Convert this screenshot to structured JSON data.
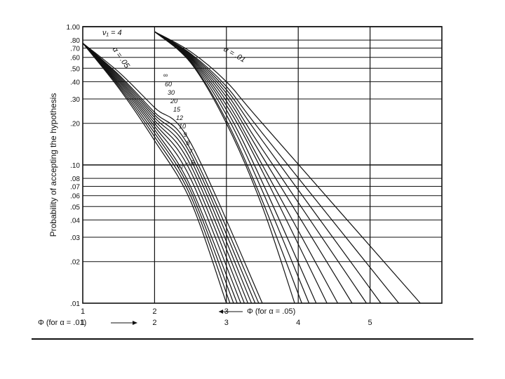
{
  "chart_data": {
    "type": "line",
    "title": "",
    "ylabel": "Probability of accepting the hypothesis",
    "yscale": "log",
    "ylim": [
      0.01,
      1.0
    ],
    "xlim": [
      1,
      6
    ],
    "grid": true,
    "y_ticks": [
      {
        "value": 1.0,
        "label": "1.00"
      },
      {
        "value": 0.8,
        "label": ".80"
      },
      {
        "value": 0.7,
        "label": ".70"
      },
      {
        "value": 0.6,
        "label": ".60"
      },
      {
        "value": 0.5,
        "label": ".50"
      },
      {
        "value": 0.4,
        "label": ".40"
      },
      {
        "value": 0.3,
        "label": ".30"
      },
      {
        "value": 0.2,
        "label": ".20"
      },
      {
        "value": 0.1,
        "label": ".10"
      },
      {
        "value": 0.08,
        "label": ".08"
      },
      {
        "value": 0.07,
        "label": ".07"
      },
      {
        "value": 0.06,
        "label": ".06"
      },
      {
        "value": 0.05,
        "label": ".05"
      },
      {
        "value": 0.04,
        "label": ".04"
      },
      {
        "value": 0.03,
        "label": ".03"
      },
      {
        "value": 0.02,
        "label": ".02"
      },
      {
        "value": 0.01,
        "label": ".01"
      }
    ],
    "x_ticks_alpha05": [
      {
        "value": 1,
        "label": "1"
      },
      {
        "value": 2,
        "label": "2"
      },
      {
        "value": 3,
        "label": "3"
      }
    ],
    "x_ticks_alpha01": [
      {
        "value": 1,
        "label": "1"
      },
      {
        "value": 2,
        "label": "2"
      },
      {
        "value": 3,
        "label": "3"
      },
      {
        "value": 4,
        "label": "4"
      },
      {
        "value": 5,
        "label": "5"
      }
    ],
    "xlabel_alpha05": "Φ (for α = .05)",
    "xlabel_alpha01": "Φ (for α = .01)",
    "annotations": {
      "nu1": "ν₁ = 4",
      "alpha05": "α = .05",
      "alpha01": "α = .01",
      "nu2_last": "ν₂ = 6"
    },
    "nu2_labels": [
      "∞",
      "60",
      "30",
      "20",
      "15",
      "12",
      "10",
      "9",
      "8",
      "7"
    ],
    "series_groups": [
      {
        "group": "α = .05",
        "x_offset": 0,
        "curves": [
          {
            "nu2": "∞",
            "points": [
              [
                1,
                0.76
              ],
              [
                1.5,
                0.36
              ],
              [
                2.0,
                0.15
              ],
              [
                2.5,
                0.055
              ],
              [
                3.0,
                0.01
              ]
            ]
          },
          {
            "nu2": "60",
            "points": [
              [
                1,
                0.76
              ],
              [
                1.5,
                0.37
              ],
              [
                2.0,
                0.16
              ],
              [
                2.5,
                0.06
              ],
              [
                3.05,
                0.01
              ]
            ]
          },
          {
            "nu2": "30",
            "points": [
              [
                1,
                0.76
              ],
              [
                1.5,
                0.38
              ],
              [
                2.0,
                0.17
              ],
              [
                2.5,
                0.065
              ],
              [
                3.1,
                0.01
              ]
            ]
          },
          {
            "nu2": "20",
            "points": [
              [
                1,
                0.76
              ],
              [
                1.5,
                0.39
              ],
              [
                2.0,
                0.18
              ],
              [
                2.5,
                0.07
              ],
              [
                3.15,
                0.01
              ]
            ]
          },
          {
            "nu2": "15",
            "points": [
              [
                1,
                0.76
              ],
              [
                1.5,
                0.4
              ],
              [
                2.0,
                0.19
              ],
              [
                2.5,
                0.08
              ],
              [
                3.2,
                0.01
              ]
            ]
          },
          {
            "nu2": "12",
            "points": [
              [
                1,
                0.76
              ],
              [
                1.5,
                0.41
              ],
              [
                2.0,
                0.2
              ],
              [
                2.5,
                0.09
              ],
              [
                3.25,
                0.01
              ]
            ]
          },
          {
            "nu2": "10",
            "points": [
              [
                1,
                0.76
              ],
              [
                1.5,
                0.42
              ],
              [
                2.0,
                0.21
              ],
              [
                2.5,
                0.1
              ],
              [
                3.3,
                0.01
              ]
            ]
          },
          {
            "nu2": "9",
            "points": [
              [
                1,
                0.76
              ],
              [
                1.5,
                0.43
              ],
              [
                2.0,
                0.22
              ],
              [
                2.5,
                0.11
              ],
              [
                3.35,
                0.01
              ]
            ]
          },
          {
            "nu2": "8",
            "points": [
              [
                1,
                0.76
              ],
              [
                1.5,
                0.44
              ],
              [
                2.0,
                0.23
              ],
              [
                2.5,
                0.12
              ],
              [
                3.4,
                0.01
              ]
            ]
          },
          {
            "nu2": "7",
            "points": [
              [
                1,
                0.76
              ],
              [
                1.5,
                0.45
              ],
              [
                2.0,
                0.24
              ],
              [
                2.5,
                0.13
              ],
              [
                3.45,
                0.01
              ]
            ]
          },
          {
            "nu2": "6",
            "points": [
              [
                1,
                0.76
              ],
              [
                1.5,
                0.47
              ],
              [
                2.0,
                0.26
              ],
              [
                2.5,
                0.145
              ],
              [
                3.5,
                0.01
              ]
            ]
          }
        ]
      },
      {
        "group": "α = .01",
        "x_offset": 1,
        "curves": [
          {
            "nu2": "∞",
            "points": [
              [
                2.0,
                0.92
              ],
              [
                2.5,
                0.55
              ],
              [
                3.0,
                0.2
              ],
              [
                3.5,
                0.05
              ],
              [
                3.95,
                0.01
              ]
            ]
          },
          {
            "nu2": "60",
            "points": [
              [
                2.0,
                0.92
              ],
              [
                2.5,
                0.56
              ],
              [
                3.0,
                0.21
              ],
              [
                3.5,
                0.055
              ],
              [
                4.05,
                0.01
              ]
            ]
          },
          {
            "nu2": "30",
            "points": [
              [
                2.0,
                0.92
              ],
              [
                2.5,
                0.57
              ],
              [
                3.0,
                0.23
              ],
              [
                3.5,
                0.065
              ],
              [
                4.15,
                0.01
              ]
            ]
          },
          {
            "nu2": "20",
            "points": [
              [
                2.0,
                0.92
              ],
              [
                2.5,
                0.58
              ],
              [
                3.0,
                0.25
              ],
              [
                3.5,
                0.075
              ],
              [
                4.25,
                0.01
              ]
            ]
          },
          {
            "nu2": "15",
            "points": [
              [
                2.0,
                0.92
              ],
              [
                2.5,
                0.59
              ],
              [
                3.0,
                0.27
              ],
              [
                3.5,
                0.09
              ],
              [
                4.4,
                0.01
              ]
            ]
          },
          {
            "nu2": "12",
            "points": [
              [
                2.0,
                0.92
              ],
              [
                2.5,
                0.6
              ],
              [
                3.0,
                0.29
              ],
              [
                3.5,
                0.1
              ],
              [
                4.55,
                0.01
              ]
            ]
          },
          {
            "nu2": "10",
            "points": [
              [
                2.0,
                0.92
              ],
              [
                2.5,
                0.61
              ],
              [
                3.0,
                0.31
              ],
              [
                3.5,
                0.115
              ],
              [
                4.75,
                0.01
              ]
            ]
          },
          {
            "nu2": "9",
            "points": [
              [
                2.0,
                0.92
              ],
              [
                2.5,
                0.62
              ],
              [
                3.0,
                0.33
              ],
              [
                3.5,
                0.13
              ],
              [
                4.95,
                0.01
              ]
            ]
          },
          {
            "nu2": "8",
            "points": [
              [
                2.0,
                0.92
              ],
              [
                2.5,
                0.63
              ],
              [
                3.0,
                0.35
              ],
              [
                3.5,
                0.15
              ],
              [
                5.15,
                0.01
              ]
            ]
          },
          {
            "nu2": "7",
            "points": [
              [
                2.0,
                0.92
              ],
              [
                2.5,
                0.64
              ],
              [
                3.0,
                0.37
              ],
              [
                3.5,
                0.17
              ],
              [
                5.4,
                0.01
              ]
            ]
          },
          {
            "nu2": "6",
            "points": [
              [
                2.0,
                0.92
              ],
              [
                2.5,
                0.66
              ],
              [
                3.0,
                0.4
              ],
              [
                3.5,
                0.2
              ],
              [
                5.7,
                0.01
              ]
            ]
          }
        ]
      }
    ]
  }
}
